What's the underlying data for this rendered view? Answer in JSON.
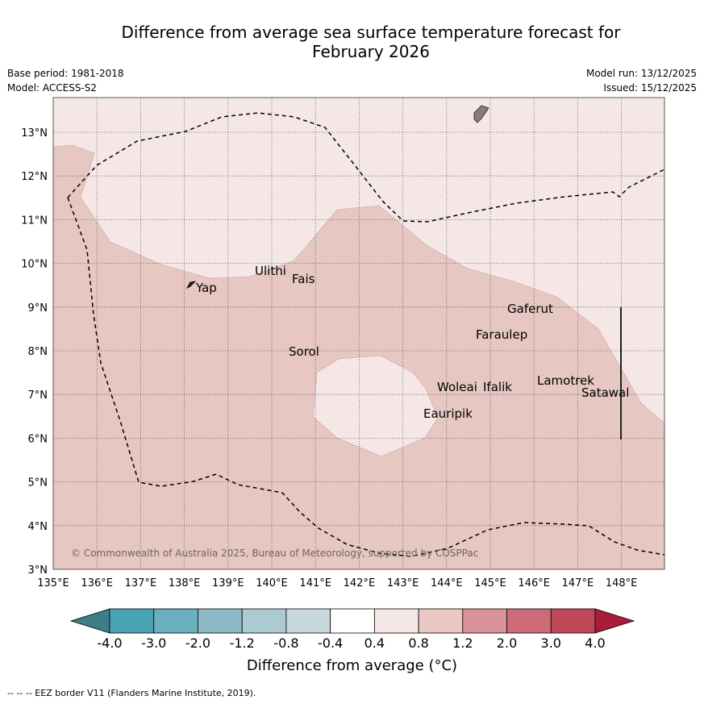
{
  "title_line1": "Difference from average sea surface temperature forecast for",
  "title_line2": "February 2026",
  "base_period": "Base period: 1981-2018",
  "model": "Model: ACCESS-S2",
  "model_run": "Model run: 13/12/2025",
  "issued": "Issued: 15/12/2025",
  "copyright": "© Commonwealth of Australia 2025, Bureau of Meteorology, supported by COSPPac",
  "lon_labels": [
    "135°E",
    "136°E",
    "137°E",
    "138°E",
    "139°E",
    "140°E",
    "141°E",
    "142°E",
    "143°E",
    "144°E",
    "145°E",
    "146°E",
    "147°E",
    "148°E"
  ],
  "lat_labels": [
    "3°N",
    "4°N",
    "5°N",
    "6°N",
    "7°N",
    "8°N",
    "9°N",
    "10°N",
    "11°N",
    "12°N",
    "13°N"
  ],
  "places": {
    "ulithi": "Ulithi",
    "fais": "Fais",
    "yap": "Yap",
    "gaferut": "Gaferut",
    "faraulep": "Faraulep",
    "sorol": "Sorol",
    "woleai": "Woleai",
    "ifalik": "Ifalik",
    "lamotrek": "Lamotrek",
    "satawal": "Satawal",
    "eauripik": "Eauripik"
  },
  "colorbar": {
    "labels": [
      "-4.0",
      "-3.0",
      "-2.0",
      "-1.2",
      "-0.8",
      "-0.4",
      "0.4",
      "0.8",
      "1.2",
      "2.0",
      "3.0",
      "4.0"
    ],
    "colors": [
      "#3d7d86",
      "#4aa3b5",
      "#69afbf",
      "#8bb9c6",
      "#abcad1",
      "#c7d9dd",
      "#ffffff",
      "#f4e7e6",
      "#e9c7c2",
      "#d8939a",
      "#cd6b78",
      "#c04858",
      "#a81d3b"
    ],
    "title": "Difference from average (°C)"
  },
  "footnote": "--  --  -- EEZ border V11 (Flanders Marine Institute, 2019)."
}
